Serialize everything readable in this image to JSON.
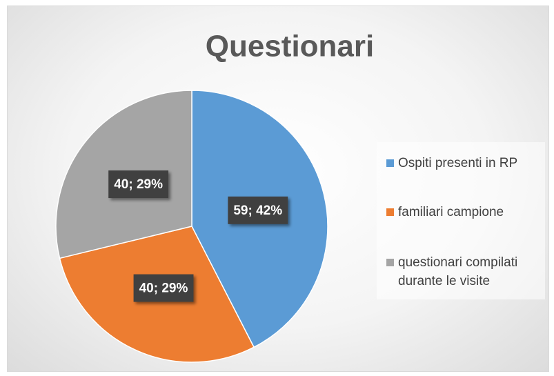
{
  "chart_data": {
    "type": "pie",
    "title": "Questionari",
    "categories": [
      "Ospiti presenti in RP",
      "familiari campione",
      "questionari compilati durante le visite"
    ],
    "values": [
      59,
      40,
      40
    ],
    "value_labels": [
      "59; 42%",
      "40; 29%",
      "40; 29%"
    ],
    "colors": [
      "#5b9bd5",
      "#ed7d31",
      "#a5a5a5"
    ],
    "legend": "right"
  }
}
